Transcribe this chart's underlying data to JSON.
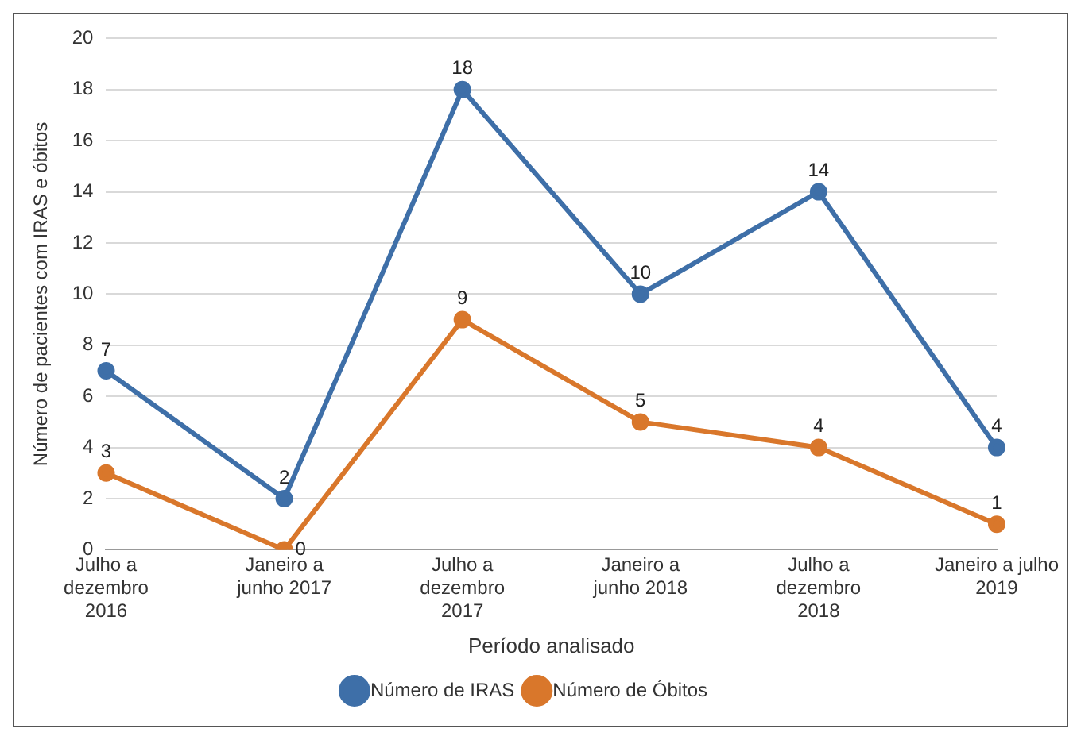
{
  "chart_data": {
    "type": "line",
    "xlabel": "Período analisado",
    "ylabel": "Número de pacientes com IRAS e óbitos",
    "categories": [
      "Julho a\ndezembro\n2016",
      "Janeiro a\njunho 2017",
      "Julho a\ndezembro\n2017",
      "Janeiro a\njunho 2018",
      "Julho a\ndezembro\n2018",
      "Janeiro a julho\n2019"
    ],
    "series": [
      {
        "name": "Número de IRAS",
        "color": "#3e6fa8",
        "values": [
          7,
          2,
          18,
          10,
          14,
          4
        ]
      },
      {
        "name": "Número de Óbitos",
        "color": "#d9772b",
        "values": [
          3,
          0,
          9,
          5,
          4,
          1
        ]
      }
    ],
    "ylim": [
      0,
      20
    ],
    "yticks": [
      0,
      2,
      4,
      6,
      8,
      10,
      12,
      14,
      16,
      18,
      20
    ],
    "grid": "y",
    "legend": "bottom",
    "marker": "circle",
    "line_style": "solid",
    "data_labels": true
  }
}
